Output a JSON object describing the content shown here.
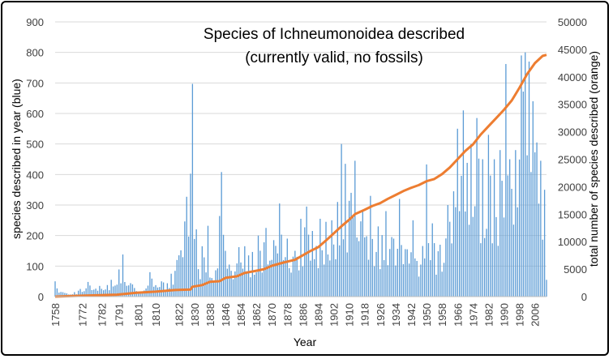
{
  "chart_data": {
    "type": "bar+line",
    "title": "Species of Ichneumonoidea described",
    "subtitle": "(currently valid, no fossils)",
    "xlabel": "Year",
    "ylabel": "species described in year (blue)",
    "y2label": "total number of species described (orange)",
    "ylim": [
      0,
      900
    ],
    "y2lim": [
      0,
      50000
    ],
    "yticks": [
      0,
      100,
      200,
      300,
      400,
      500,
      600,
      700,
      800,
      900
    ],
    "y2ticks": [
      0,
      5000,
      10000,
      15000,
      20000,
      25000,
      30000,
      35000,
      40000,
      45000,
      50000
    ],
    "xtick_labels": [
      "1758",
      "1772",
      "1782",
      "1791",
      "1801",
      "1810",
      "1822",
      "1830",
      "1838",
      "1846",
      "1854",
      "1862",
      "1870",
      "1878",
      "1886",
      "1894",
      "1902",
      "1910",
      "1918",
      "1926",
      "1934",
      "1942",
      "1950",
      "1958",
      "1966",
      "1974",
      "1982",
      "1990",
      "1998",
      "2006"
    ],
    "year_start": 1758,
    "year_end": 2012,
    "colors": {
      "bars": "#5b9bd5",
      "cumulative": "#ed7d31"
    },
    "bar_peaks": [
      {
        "year": 1758,
        "value": 50
      },
      {
        "year": 1763,
        "value": 12
      },
      {
        "year": 1771,
        "value": 25
      },
      {
        "year": 1775,
        "value": 48
      },
      {
        "year": 1781,
        "value": 35
      },
      {
        "year": 1787,
        "value": 55
      },
      {
        "year": 1793,
        "value": 138
      },
      {
        "year": 1798,
        "value": 40
      },
      {
        "year": 1804,
        "value": 20
      },
      {
        "year": 1807,
        "value": 80
      },
      {
        "year": 1813,
        "value": 50
      },
      {
        "year": 1818,
        "value": 75
      },
      {
        "year": 1821,
        "value": 120
      },
      {
        "year": 1829,
        "value": 697
      },
      {
        "year": 1832,
        "value": 90
      },
      {
        "year": 1834,
        "value": 165
      },
      {
        "year": 1837,
        "value": 232
      },
      {
        "year": 1840,
        "value": 50
      },
      {
        "year": 1844,
        "value": 408
      },
      {
        "year": 1848,
        "value": 105
      },
      {
        "year": 1853,
        "value": 162
      },
      {
        "year": 1856,
        "value": 165
      },
      {
        "year": 1863,
        "value": 200
      },
      {
        "year": 1867,
        "value": 225
      },
      {
        "year": 1871,
        "value": 185
      },
      {
        "year": 1874,
        "value": 305
      },
      {
        "year": 1878,
        "value": 190
      },
      {
        "year": 1882,
        "value": 150
      },
      {
        "year": 1885,
        "value": 255
      },
      {
        "year": 1888,
        "value": 295
      },
      {
        "year": 1891,
        "value": 215
      },
      {
        "year": 1895,
        "value": 255
      },
      {
        "year": 1898,
        "value": 245
      },
      {
        "year": 1901,
        "value": 250
      },
      {
        "year": 1904,
        "value": 310
      },
      {
        "year": 1906,
        "value": 500
      },
      {
        "year": 1908,
        "value": 435
      },
      {
        "year": 1911,
        "value": 340
      },
      {
        "year": 1913,
        "value": 445
      },
      {
        "year": 1917,
        "value": 280
      },
      {
        "year": 1921,
        "value": 330
      },
      {
        "year": 1925,
        "value": 230
      },
      {
        "year": 1929,
        "value": 280
      },
      {
        "year": 1932,
        "value": 195
      },
      {
        "year": 1936,
        "value": 320
      },
      {
        "year": 1940,
        "value": 155
      },
      {
        "year": 1943,
        "value": 250
      },
      {
        "year": 1947,
        "value": 105
      },
      {
        "year": 1950,
        "value": 433
      },
      {
        "year": 1953,
        "value": 240
      },
      {
        "year": 1957,
        "value": 170
      },
      {
        "year": 1961,
        "value": 300
      },
      {
        "year": 1964,
        "value": 345
      },
      {
        "year": 1966,
        "value": 550
      },
      {
        "year": 1969,
        "value": 610
      },
      {
        "year": 1973,
        "value": 500
      },
      {
        "year": 1976,
        "value": 585
      },
      {
        "year": 1979,
        "value": 450
      },
      {
        "year": 1982,
        "value": 530
      },
      {
        "year": 1985,
        "value": 450
      },
      {
        "year": 1988,
        "value": 480
      },
      {
        "year": 1991,
        "value": 762
      },
      {
        "year": 1993,
        "value": 450
      },
      {
        "year": 1996,
        "value": 480
      },
      {
        "year": 1999,
        "value": 790
      },
      {
        "year": 2001,
        "value": 800
      },
      {
        "year": 2003,
        "value": 770
      },
      {
        "year": 2005,
        "value": 640
      },
      {
        "year": 2007,
        "value": 505
      },
      {
        "year": 2009,
        "value": 445
      },
      {
        "year": 2011,
        "value": 350
      },
      {
        "year": 2012,
        "value": 55
      }
    ],
    "cumulative": [
      {
        "year": 1758,
        "value": 0
      },
      {
        "year": 1770,
        "value": 150
      },
      {
        "year": 1790,
        "value": 350
      },
      {
        "year": 1800,
        "value": 700
      },
      {
        "year": 1810,
        "value": 900
      },
      {
        "year": 1820,
        "value": 1200
      },
      {
        "year": 1828,
        "value": 1300
      },
      {
        "year": 1829,
        "value": 1800
      },
      {
        "year": 1834,
        "value": 2100
      },
      {
        "year": 1838,
        "value": 2700
      },
      {
        "year": 1843,
        "value": 2800
      },
      {
        "year": 1846,
        "value": 3400
      },
      {
        "year": 1852,
        "value": 3700
      },
      {
        "year": 1856,
        "value": 4300
      },
      {
        "year": 1862,
        "value": 4700
      },
      {
        "year": 1866,
        "value": 5000
      },
      {
        "year": 1870,
        "value": 5600
      },
      {
        "year": 1876,
        "value": 6200
      },
      {
        "year": 1882,
        "value": 6700
      },
      {
        "year": 1886,
        "value": 7500
      },
      {
        "year": 1890,
        "value": 8300
      },
      {
        "year": 1894,
        "value": 9000
      },
      {
        "year": 1898,
        "value": 10200
      },
      {
        "year": 1902,
        "value": 11500
      },
      {
        "year": 1906,
        "value": 12800
      },
      {
        "year": 1910,
        "value": 14000
      },
      {
        "year": 1913,
        "value": 15000
      },
      {
        "year": 1918,
        "value": 15800
      },
      {
        "year": 1922,
        "value": 16500
      },
      {
        "year": 1926,
        "value": 17000
      },
      {
        "year": 1930,
        "value": 17800
      },
      {
        "year": 1934,
        "value": 18500
      },
      {
        "year": 1938,
        "value": 19200
      },
      {
        "year": 1942,
        "value": 19800
      },
      {
        "year": 1946,
        "value": 20300
      },
      {
        "year": 1950,
        "value": 21000
      },
      {
        "year": 1954,
        "value": 21400
      },
      {
        "year": 1958,
        "value": 22300
      },
      {
        "year": 1962,
        "value": 23500
      },
      {
        "year": 1966,
        "value": 25000
      },
      {
        "year": 1970,
        "value": 26500
      },
      {
        "year": 1974,
        "value": 27700
      },
      {
        "year": 1978,
        "value": 29500
      },
      {
        "year": 1982,
        "value": 31000
      },
      {
        "year": 1986,
        "value": 32500
      },
      {
        "year": 1990,
        "value": 34000
      },
      {
        "year": 1994,
        "value": 35700
      },
      {
        "year": 1998,
        "value": 38000
      },
      {
        "year": 2002,
        "value": 40500
      },
      {
        "year": 2006,
        "value": 42500
      },
      {
        "year": 2010,
        "value": 43800
      },
      {
        "year": 2012,
        "value": 44000
      }
    ]
  }
}
